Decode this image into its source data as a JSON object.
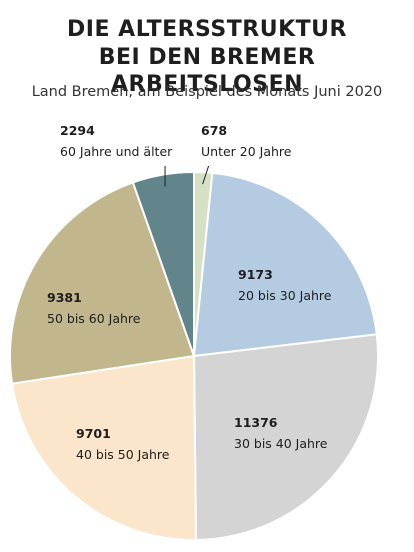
{
  "header": {
    "title_line1": "DIE ALTERSSTRUKTUR",
    "title_line2": "BEI DEN BREMER ARBEITSLOSEN",
    "subtitle": "Land Bremen, am Beispiel des Monats Juni 2020"
  },
  "chart_data": {
    "type": "pie",
    "title": "DIE ALTERSSTRUKTUR BEI DEN BREMER ARBEITSLOSEN",
    "subtitle": "Land Bremen, am Beispiel des Monats Juni 2020",
    "start": "12 o'clock",
    "direction": "clockwise",
    "slices": [
      {
        "label": "Unter 20 Jahre",
        "value": 678,
        "color": "#d6e1c4"
      },
      {
        "label": "20 bis 30 Jahre",
        "value": 9173,
        "color": "#b5cbe1"
      },
      {
        "label": "30 bis 40 Jahre",
        "value": 11376,
        "color": "#d4d4d4"
      },
      {
        "label": "40 bis 50 Jahre",
        "value": 9701,
        "color": "#fbe6cb"
      },
      {
        "label": "50 bis 60 Jahre",
        "value": 9381,
        "color": "#c2b68d"
      },
      {
        "label": "60 Jahre und älter",
        "value": 2294,
        "color": "#61858b"
      }
    ]
  }
}
